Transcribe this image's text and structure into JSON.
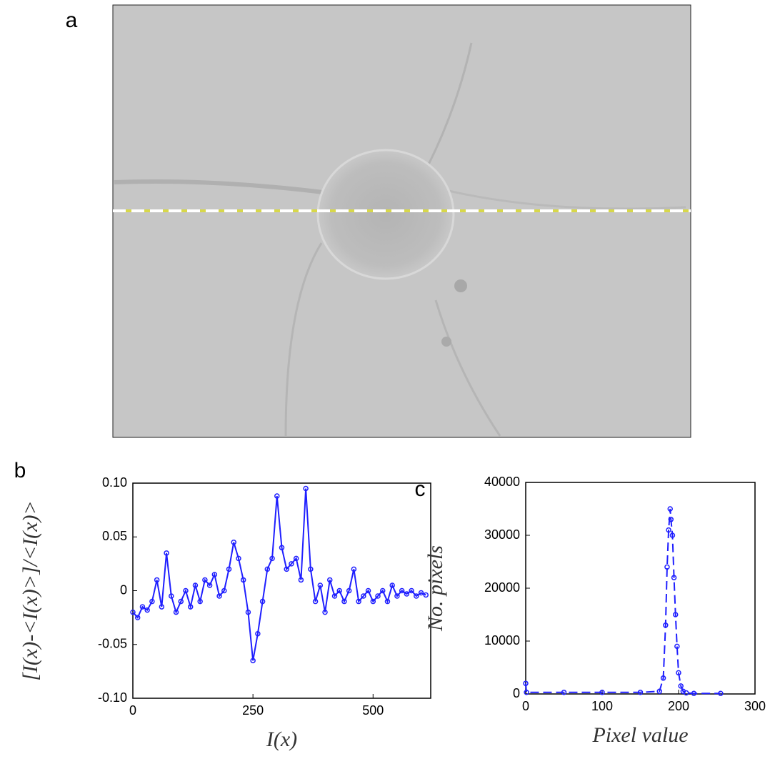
{
  "panel_labels": [
    "a",
    "b",
    "c"
  ],
  "chart_data": [
    {
      "type": "line",
      "xlabel": "I(x)",
      "ylabel": "[I(x)-<I(x)>]/<I(x)>",
      "xlim": [
        0,
        620
      ],
      "xticks": [
        0,
        250,
        500
      ],
      "ylim": [
        -0.1,
        0.1
      ],
      "yticks": [
        {
          "value": -0.1,
          "label": "-0.10"
        },
        -0.05,
        0,
        0.05,
        {
          "value": 0.1,
          "label": "0.10"
        }
      ],
      "series": [
        {
          "color": "#1f1fff",
          "line_style": "solid",
          "markers": true,
          "x": [
            0,
            10,
            20,
            30,
            40,
            50,
            60,
            70,
            80,
            90,
            100,
            110,
            120,
            130,
            140,
            150,
            160,
            170,
            180,
            190,
            200,
            210,
            220,
            230,
            240,
            250,
            260,
            270,
            280,
            290,
            300,
            310,
            320,
            330,
            340,
            350,
            360,
            370,
            380,
            390,
            400,
            410,
            420,
            430,
            440,
            450,
            460,
            470,
            480,
            490,
            500,
            510,
            520,
            530,
            540,
            550,
            560,
            570,
            580,
            590,
            600,
            610
          ],
          "values": [
            -0.02,
            -0.025,
            -0.015,
            -0.018,
            -0.01,
            0.01,
            -0.015,
            0.035,
            -0.005,
            -0.02,
            -0.01,
            0.0,
            -0.015,
            0.005,
            -0.01,
            0.01,
            0.005,
            0.015,
            -0.005,
            0.0,
            0.02,
            0.045,
            0.03,
            0.01,
            -0.02,
            -0.065,
            -0.04,
            -0.01,
            0.02,
            0.03,
            0.088,
            0.04,
            0.02,
            0.025,
            0.03,
            0.01,
            0.095,
            0.02,
            -0.01,
            0.005,
            -0.02,
            0.01,
            -0.005,
            0.0,
            -0.01,
            0.0,
            0.02,
            -0.01,
            -0.005,
            0.0,
            -0.01,
            -0.005,
            0.0,
            -0.01,
            0.005,
            -0.005,
            0.0,
            -0.003,
            0.0,
            -0.005,
            -0.002,
            -0.004
          ]
        }
      ]
    },
    {
      "type": "line",
      "xlabel": "Pixel value",
      "ylabel": "No. pixels",
      "xlim": [
        0,
        300
      ],
      "xticks": [
        0,
        100,
        200,
        300
      ],
      "ylim": [
        0,
        40000
      ],
      "yticks": [
        0,
        10000,
        20000,
        30000,
        40000
      ],
      "series": [
        {
          "color": "#1f1fff",
          "line_style": "dashed",
          "markers": true,
          "x": [
            0,
            1,
            50,
            100,
            150,
            175,
            180,
            183,
            185,
            187,
            189,
            190,
            192,
            194,
            196,
            198,
            200,
            203,
            206,
            210,
            220,
            255
          ],
          "values": [
            2000,
            300,
            300,
            300,
            300,
            500,
            3000,
            13000,
            24000,
            31000,
            35000,
            33000,
            30000,
            22000,
            15000,
            9000,
            4000,
            1500,
            500,
            200,
            100,
            100
          ]
        }
      ]
    }
  ]
}
